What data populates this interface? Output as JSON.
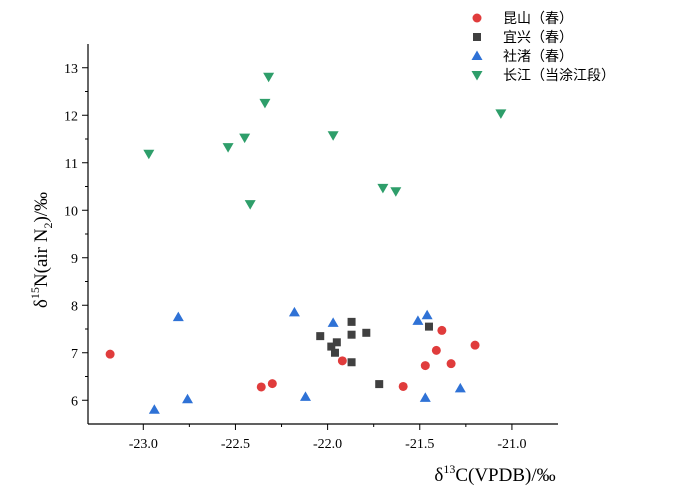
{
  "chart_data": {
    "type": "scatter",
    "xlabel": {
      "prefix": "δ",
      "sup": "13",
      "main": "C(VPDB)/‰"
    },
    "ylabel": {
      "prefix": "δ",
      "sup": "15",
      "main": "N(air N",
      "sub": "2",
      "tail": ")/‰"
    },
    "xlim": [
      -23.3,
      -20.75
    ],
    "ylim": [
      5.5,
      13.5
    ],
    "xticks": [
      -23.0,
      -22.5,
      -22.0,
      -21.5,
      -21.0
    ],
    "xtick_labels": [
      "-23.0",
      "-22.5",
      "-22.0",
      "-21.5",
      "-21.0"
    ],
    "yticks": [
      6,
      7,
      8,
      9,
      10,
      11,
      12,
      13
    ],
    "ytick_labels": [
      "6",
      "7",
      "8",
      "9",
      "10",
      "11",
      "12",
      "13"
    ],
    "grid": false,
    "legend_position": "top-right",
    "series": [
      {
        "name": "昆山（春）",
        "marker": "circle",
        "color": "#e03c3c",
        "points": [
          {
            "x": -23.18,
            "y": 6.97
          },
          {
            "x": -22.36,
            "y": 6.28
          },
          {
            "x": -22.3,
            "y": 6.35
          },
          {
            "x": -21.92,
            "y": 6.83
          },
          {
            "x": -21.59,
            "y": 6.29
          },
          {
            "x": -21.47,
            "y": 6.73
          },
          {
            "x": -21.41,
            "y": 7.05
          },
          {
            "x": -21.38,
            "y": 7.47
          },
          {
            "x": -21.33,
            "y": 6.77
          },
          {
            "x": -21.2,
            "y": 7.16
          }
        ]
      },
      {
        "name": "宜兴（春）",
        "marker": "square",
        "color": "#404040",
        "points": [
          {
            "x": -22.04,
            "y": 7.35
          },
          {
            "x": -21.98,
            "y": 7.13
          },
          {
            "x": -21.96,
            "y": 7.0
          },
          {
            "x": -21.95,
            "y": 7.22
          },
          {
            "x": -21.87,
            "y": 7.65
          },
          {
            "x": -21.87,
            "y": 7.38
          },
          {
            "x": -21.87,
            "y": 6.8
          },
          {
            "x": -21.79,
            "y": 7.42
          },
          {
            "x": -21.72,
            "y": 6.34
          },
          {
            "x": -21.45,
            "y": 7.55
          }
        ]
      },
      {
        "name": "社渚（春）",
        "marker": "triangle-up",
        "color": "#2f72d6",
        "points": [
          {
            "x": -22.94,
            "y": 5.8
          },
          {
            "x": -22.81,
            "y": 7.75
          },
          {
            "x": -22.76,
            "y": 6.02
          },
          {
            "x": -22.18,
            "y": 7.85
          },
          {
            "x": -22.12,
            "y": 6.07
          },
          {
            "x": -21.97,
            "y": 7.63
          },
          {
            "x": -21.51,
            "y": 7.67
          },
          {
            "x": -21.47,
            "y": 6.05
          },
          {
            "x": -21.46,
            "y": 7.79
          },
          {
            "x": -21.28,
            "y": 6.25
          }
        ]
      },
      {
        "name": "长江（当涂江段）",
        "marker": "triangle-down",
        "color": "#2e9e6a",
        "points": [
          {
            "x": -22.97,
            "y": 11.19
          },
          {
            "x": -22.54,
            "y": 11.33
          },
          {
            "x": -22.45,
            "y": 11.53
          },
          {
            "x": -22.42,
            "y": 10.13
          },
          {
            "x": -22.34,
            "y": 12.26
          },
          {
            "x": -22.32,
            "y": 12.81
          },
          {
            "x": -21.97,
            "y": 11.58
          },
          {
            "x": -21.7,
            "y": 10.47
          },
          {
            "x": -21.63,
            "y": 10.4
          },
          {
            "x": -21.06,
            "y": 12.04
          }
        ]
      }
    ]
  }
}
